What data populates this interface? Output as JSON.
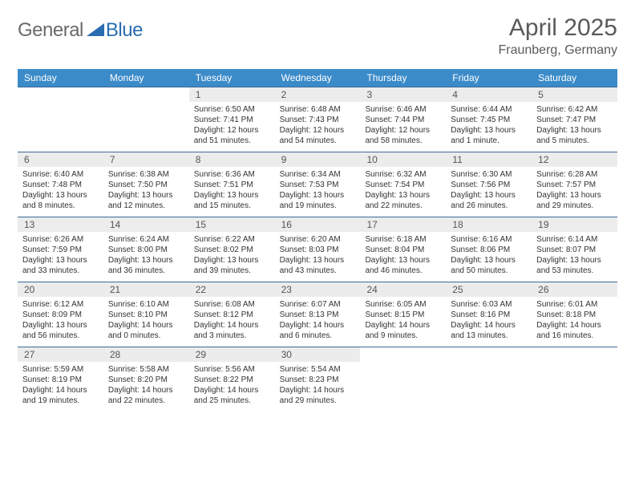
{
  "logo": {
    "text1": "General",
    "text2": "Blue"
  },
  "title": "April 2025",
  "location": "Fraunberg, Germany",
  "colors": {
    "header_bg": "#3b8bc9",
    "header_text": "#ffffff",
    "daynum_bg": "#ececec",
    "week_border": "#3b6a9a",
    "text": "#333333",
    "title_color": "#5a5a5a",
    "logo_gray": "#6a6a6a",
    "logo_blue": "#2a6db0"
  },
  "day_names": [
    "Sunday",
    "Monday",
    "Tuesday",
    "Wednesday",
    "Thursday",
    "Friday",
    "Saturday"
  ],
  "weeks": [
    [
      {
        "empty": true
      },
      {
        "empty": true
      },
      {
        "num": "1",
        "sunrise": "6:50 AM",
        "sunset": "7:41 PM",
        "daylight": "12 hours and 51 minutes."
      },
      {
        "num": "2",
        "sunrise": "6:48 AM",
        "sunset": "7:43 PM",
        "daylight": "12 hours and 54 minutes."
      },
      {
        "num": "3",
        "sunrise": "6:46 AM",
        "sunset": "7:44 PM",
        "daylight": "12 hours and 58 minutes."
      },
      {
        "num": "4",
        "sunrise": "6:44 AM",
        "sunset": "7:45 PM",
        "daylight": "13 hours and 1 minute."
      },
      {
        "num": "5",
        "sunrise": "6:42 AM",
        "sunset": "7:47 PM",
        "daylight": "13 hours and 5 minutes."
      }
    ],
    [
      {
        "num": "6",
        "sunrise": "6:40 AM",
        "sunset": "7:48 PM",
        "daylight": "13 hours and 8 minutes."
      },
      {
        "num": "7",
        "sunrise": "6:38 AM",
        "sunset": "7:50 PM",
        "daylight": "13 hours and 12 minutes."
      },
      {
        "num": "8",
        "sunrise": "6:36 AM",
        "sunset": "7:51 PM",
        "daylight": "13 hours and 15 minutes."
      },
      {
        "num": "9",
        "sunrise": "6:34 AM",
        "sunset": "7:53 PM",
        "daylight": "13 hours and 19 minutes."
      },
      {
        "num": "10",
        "sunrise": "6:32 AM",
        "sunset": "7:54 PM",
        "daylight": "13 hours and 22 minutes."
      },
      {
        "num": "11",
        "sunrise": "6:30 AM",
        "sunset": "7:56 PM",
        "daylight": "13 hours and 26 minutes."
      },
      {
        "num": "12",
        "sunrise": "6:28 AM",
        "sunset": "7:57 PM",
        "daylight": "13 hours and 29 minutes."
      }
    ],
    [
      {
        "num": "13",
        "sunrise": "6:26 AM",
        "sunset": "7:59 PM",
        "daylight": "13 hours and 33 minutes."
      },
      {
        "num": "14",
        "sunrise": "6:24 AM",
        "sunset": "8:00 PM",
        "daylight": "13 hours and 36 minutes."
      },
      {
        "num": "15",
        "sunrise": "6:22 AM",
        "sunset": "8:02 PM",
        "daylight": "13 hours and 39 minutes."
      },
      {
        "num": "16",
        "sunrise": "6:20 AM",
        "sunset": "8:03 PM",
        "daylight": "13 hours and 43 minutes."
      },
      {
        "num": "17",
        "sunrise": "6:18 AM",
        "sunset": "8:04 PM",
        "daylight": "13 hours and 46 minutes."
      },
      {
        "num": "18",
        "sunrise": "6:16 AM",
        "sunset": "8:06 PM",
        "daylight": "13 hours and 50 minutes."
      },
      {
        "num": "19",
        "sunrise": "6:14 AM",
        "sunset": "8:07 PM",
        "daylight": "13 hours and 53 minutes."
      }
    ],
    [
      {
        "num": "20",
        "sunrise": "6:12 AM",
        "sunset": "8:09 PM",
        "daylight": "13 hours and 56 minutes."
      },
      {
        "num": "21",
        "sunrise": "6:10 AM",
        "sunset": "8:10 PM",
        "daylight": "14 hours and 0 minutes."
      },
      {
        "num": "22",
        "sunrise": "6:08 AM",
        "sunset": "8:12 PM",
        "daylight": "14 hours and 3 minutes."
      },
      {
        "num": "23",
        "sunrise": "6:07 AM",
        "sunset": "8:13 PM",
        "daylight": "14 hours and 6 minutes."
      },
      {
        "num": "24",
        "sunrise": "6:05 AM",
        "sunset": "8:15 PM",
        "daylight": "14 hours and 9 minutes."
      },
      {
        "num": "25",
        "sunrise": "6:03 AM",
        "sunset": "8:16 PM",
        "daylight": "14 hours and 13 minutes."
      },
      {
        "num": "26",
        "sunrise": "6:01 AM",
        "sunset": "8:18 PM",
        "daylight": "14 hours and 16 minutes."
      }
    ],
    [
      {
        "num": "27",
        "sunrise": "5:59 AM",
        "sunset": "8:19 PM",
        "daylight": "14 hours and 19 minutes."
      },
      {
        "num": "28",
        "sunrise": "5:58 AM",
        "sunset": "8:20 PM",
        "daylight": "14 hours and 22 minutes."
      },
      {
        "num": "29",
        "sunrise": "5:56 AM",
        "sunset": "8:22 PM",
        "daylight": "14 hours and 25 minutes."
      },
      {
        "num": "30",
        "sunrise": "5:54 AM",
        "sunset": "8:23 PM",
        "daylight": "14 hours and 29 minutes."
      },
      {
        "empty": true
      },
      {
        "empty": true
      },
      {
        "empty": true
      }
    ]
  ],
  "labels": {
    "sunrise_prefix": "Sunrise: ",
    "sunset_prefix": "Sunset: ",
    "daylight_prefix": "Daylight: "
  }
}
